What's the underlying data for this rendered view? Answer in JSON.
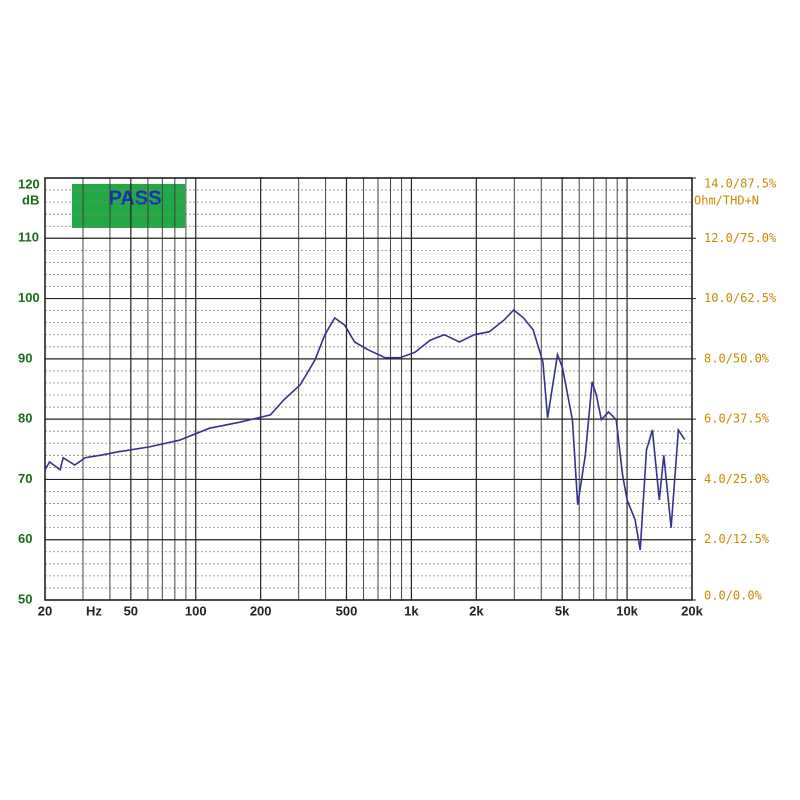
{
  "chart_data": {
    "type": "line",
    "badge": "PASS",
    "y_unit": "dB",
    "x_label": "Hz",
    "y2_label": "Ohm/THD+N",
    "xlog": true,
    "grid": true,
    "xlim": [
      20,
      20000
    ],
    "xticks": [
      20,
      50,
      100,
      200,
      500,
      {
        "value": 1000,
        "label": "1k"
      },
      {
        "value": 2000,
        "label": "2k"
      },
      {
        "value": 5000,
        "label": "5k"
      },
      {
        "value": 10000,
        "label": "10k"
      },
      {
        "value": 20000,
        "label": "20k"
      }
    ],
    "x_minor_ticks": [
      30,
      40,
      60,
      70,
      80,
      90,
      300,
      400,
      600,
      700,
      800,
      900,
      3000,
      4000,
      6000,
      7000,
      8000,
      9000
    ],
    "ylim": [
      50,
      120
    ],
    "yticks": [
      50,
      60,
      70,
      80,
      90,
      100,
      110,
      120
    ],
    "y_minor_ticks": [
      52,
      54,
      56,
      58,
      62,
      64,
      66,
      68,
      72,
      74,
      76,
      78,
      82,
      84,
      86,
      88,
      92,
      94,
      96,
      98,
      102,
      104,
      106,
      108,
      112,
      114,
      116,
      118
    ],
    "y2lim": [
      0,
      14
    ],
    "y2ticks": [
      {
        "value": 0,
        "label": "0.0/0.0%"
      },
      {
        "value": 2,
        "label": "2.0/12.5%"
      },
      {
        "value": 4,
        "label": "4.0/25.0%"
      },
      {
        "value": 6,
        "label": "6.0/37.5%"
      },
      {
        "value": 8,
        "label": "8.0/50.0%"
      },
      {
        "value": 10,
        "label": "10.0/62.5%"
      },
      {
        "value": 12,
        "label": "12.0/75.0%"
      },
      {
        "value": 14,
        "label": "14.0/87.5%"
      }
    ],
    "x": [
      20,
      21,
      23.5,
      24.3,
      27.5,
      30.7,
      36,
      44,
      61,
      84,
      116,
      160,
      222,
      256,
      305,
      357,
      397,
      441,
      490,
      545,
      630,
      755,
      885,
      1040,
      1220,
      1420,
      1670,
      1960,
      2300,
      2700,
      2980,
      3310,
      3670,
      4070,
      4280,
      4760,
      5020,
      5580,
      5900,
      6400,
      6880,
      7200,
      7600,
      8200,
      8900,
      9530,
      10000,
      10900,
      11500,
      12300,
      13100,
      14100,
      14800,
      16000,
      17300,
      18500
    ],
    "series": [
      {
        "color": "#33338f",
        "values": [
          71.6,
          72.9,
          71.6,
          73.6,
          72.4,
          73.6,
          74,
          74.6,
          75.4,
          76.5,
          78.5,
          79.5,
          80.7,
          83.2,
          85.7,
          89.8,
          94,
          96.8,
          95.6,
          92.8,
          91.5,
          90.2,
          90.2,
          91.1,
          93.1,
          94,
          92.8,
          94,
          94.5,
          96.5,
          98.1,
          96.8,
          94.8,
          89.5,
          80.2,
          90.7,
          88.5,
          79.9,
          65.8,
          74,
          86.2,
          84,
          79.9,
          81.2,
          79.9,
          70.7,
          66.6,
          63.3,
          58.3,
          74.9,
          78.2,
          66.6,
          74,
          62,
          78.2,
          76.6
        ]
      }
    ]
  }
}
